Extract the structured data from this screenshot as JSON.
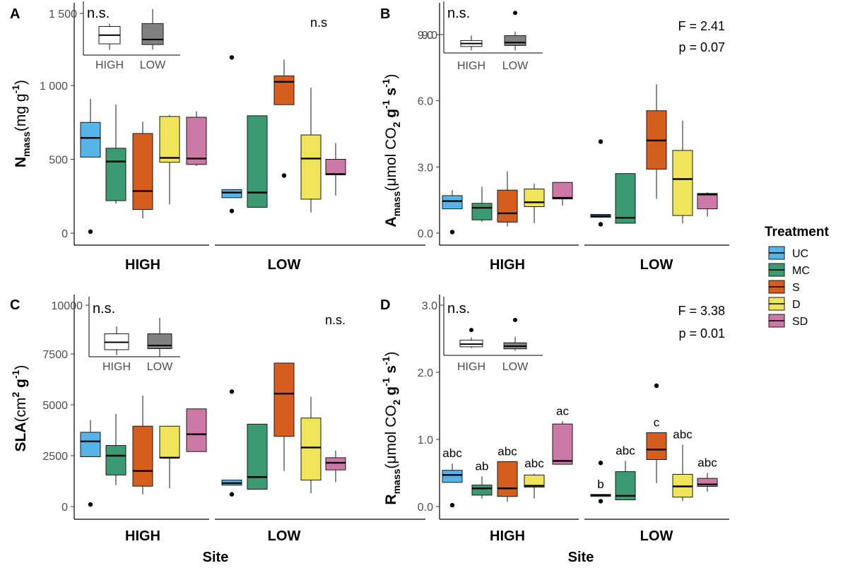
{
  "chart_data": {
    "type": "box",
    "treatments": [
      "UC",
      "MC",
      "S",
      "D",
      "SD"
    ],
    "sites": [
      "HIGH",
      "LOW"
    ],
    "colors": {
      "UC": "#56B4E9",
      "MC": "#3C9A73",
      "S": "#D55E1F",
      "D": "#F0E45A",
      "SD": "#CC79A7",
      "inset_high": "#ffffff",
      "inset_low": "#808080"
    },
    "legend": {
      "title": "Treatment",
      "items": [
        {
          "label": "UC",
          "color": "#56B4E9"
        },
        {
          "label": "MC",
          "color": "#3C9A73"
        },
        {
          "label": "S",
          "color": "#D55E1F"
        },
        {
          "label": "D",
          "color": "#F0E45A"
        },
        {
          "label": "SD",
          "color": "#CC79A7"
        }
      ]
    },
    "xlabel": "Site",
    "panels": [
      {
        "letter": "A",
        "ylabel": {
          "main": "N",
          "sub": "mass",
          "unit": "(mg g",
          "sup": "-1",
          "close": ")"
        },
        "ylim": [
          -60,
          1150
        ],
        "yticks": [
          {
            "v": 0,
            "label": "0"
          },
          {
            "v": 500,
            "label": "500"
          },
          {
            "v": 1000,
            "label": "1 000"
          }
        ],
        "annotations": [
          "n.s"
        ],
        "groups": {
          "HIGH": [
            {
              "t": "UC",
              "min": null,
              "q1": 515,
              "med": 645,
              "q3": 750,
              "max": 910,
              "out": [
                10
              ],
              "sig": null
            },
            {
              "t": "MC",
              "min": 200,
              "q1": 220,
              "med": 485,
              "q3": 575,
              "max": 870,
              "out": [],
              "sig": null
            },
            {
              "t": "S",
              "min": 100,
              "q1": 160,
              "med": 285,
              "q3": 675,
              "max": 755,
              "out": [],
              "sig": null
            },
            {
              "t": "D",
              "min": 195,
              "q1": 480,
              "med": 510,
              "q3": 790,
              "max": 800,
              "out": [],
              "sig": null
            },
            {
              "t": "SD",
              "min": 455,
              "q1": 465,
              "med": 505,
              "q3": 785,
              "max": 825,
              "out": [],
              "sig": null
            }
          ],
          "LOW": [
            {
              "t": "UC",
              "min": null,
              "q1": 240,
              "med": 275,
              "q3": 295,
              "max": null,
              "out": [
                150,
                1190
              ],
              "sig": null
            },
            {
              "t": "MC",
              "min": null,
              "q1": 175,
              "med": 275,
              "q3": 795,
              "max": null,
              "out": [],
              "sig": null
            },
            {
              "t": "S",
              "min": null,
              "q1": 870,
              "med": 1025,
              "q3": 1065,
              "max": 1175,
              "out": [
                390
              ],
              "sig": null
            },
            {
              "t": "D",
              "min": 140,
              "q1": 230,
              "med": 505,
              "q3": 665,
              "max": 985,
              "out": [],
              "sig": null
            },
            {
              "t": "SD",
              "min": 255,
              "q1": 395,
              "med": 400,
              "q3": 500,
              "max": 610,
              "out": [],
              "sig": null
            }
          ]
        },
        "inset": {
          "annotation": "n.s.",
          "yticks": [
            {
              "v": 1500,
              "label": "1 500"
            }
          ],
          "ylim": [
            1230,
            1570
          ],
          "boxes": [
            {
              "site": "HIGH",
              "min": 1250,
              "q1": 1290,
              "med": 1350,
              "q3": 1410,
              "max": 1430
            },
            {
              "site": "LOW",
              "min": 1250,
              "q1": 1285,
              "med": 1320,
              "q3": 1430,
              "max": 1530
            }
          ]
        }
      },
      {
        "letter": "B",
        "ylabel": {
          "main": "A",
          "sub": "mass",
          "unit": "(μmol CO",
          "sub2": "2",
          "unit2": " g",
          "sup": "-1",
          "unit3": " s",
          "sup2": "-1",
          "close": ")"
        },
        "ylim": [
          -0.25,
          10.6
        ],
        "yticks": [
          {
            "v": 0,
            "label": "0.0"
          },
          {
            "v": 3,
            "label": "3.0"
          },
          {
            "v": 6,
            "label": "6.0"
          },
          {
            "v": 9,
            "label": "9.0"
          }
        ],
        "annotations": [
          "F = 2.41",
          "p = 0.07"
        ],
        "groups": {
          "HIGH": [
            {
              "t": "UC",
              "min": null,
              "q1": 1.1,
              "med": 1.45,
              "q3": 1.7,
              "max": 1.95,
              "out": [
                0.05
              ],
              "sig": null
            },
            {
              "t": "MC",
              "min": 0.5,
              "q1": 0.6,
              "med": 1.15,
              "q3": 1.35,
              "max": 2.1,
              "out": [],
              "sig": null
            },
            {
              "t": "S",
              "min": 0.3,
              "q1": 0.5,
              "med": 0.9,
              "q3": 1.95,
              "max": 2.8,
              "out": [],
              "sig": null
            },
            {
              "t": "D",
              "min": 0.45,
              "q1": 1.2,
              "med": 1.4,
              "q3": 2.0,
              "max": 2.25,
              "out": [],
              "sig": null
            },
            {
              "t": "SD",
              "min": 1.25,
              "q1": 1.55,
              "med": 1.6,
              "q3": 2.3,
              "max": 2.3,
              "out": [],
              "sig": null
            }
          ],
          "LOW": [
            {
              "t": "UC",
              "min": null,
              "q1": 0.72,
              "med": 0.78,
              "q3": 0.85,
              "max": null,
              "out": [
                0.4,
                4.15
              ],
              "sig": null
            },
            {
              "t": "MC",
              "min": null,
              "q1": 0.45,
              "med": 0.7,
              "q3": 2.7,
              "max": null,
              "out": [],
              "sig": null
            },
            {
              "t": "S",
              "min": 1.55,
              "q1": 2.9,
              "med": 4.2,
              "q3": 5.55,
              "max": 6.75,
              "out": [],
              "sig": null
            },
            {
              "t": "D",
              "min": 0.45,
              "q1": 0.8,
              "med": 2.45,
              "q3": 3.75,
              "max": 5.1,
              "out": [],
              "sig": null
            },
            {
              "t": "SD",
              "min": 0.75,
              "q1": 1.1,
              "med": 1.75,
              "q3": 1.8,
              "max": 1.85,
              "out": [],
              "sig": null
            }
          ]
        },
        "inset": {
          "annotation": "n.s.",
          "yticks": [
            {
              "v": 9,
              "label": "9.0"
            }
          ],
          "ylim": [
            7.9,
            10.55
          ],
          "boxes": [
            {
              "site": "HIGH",
              "min": 8.2,
              "q1": 8.4,
              "med": 8.55,
              "q3": 8.7,
              "max": 8.95,
              "out": []
            },
            {
              "site": "LOW",
              "min": 8.2,
              "q1": 8.45,
              "med": 8.6,
              "q3": 8.95,
              "max": 9.15,
              "out": [
                10.1
              ]
            }
          ]
        }
      },
      {
        "letter": "C",
        "ylabel": {
          "main": "SLA",
          "unit": "(cm",
          "sup": "2",
          "unit2": " g",
          "sup2": "-1",
          "close": ")"
        },
        "ylim": [
          -450,
          7800
        ],
        "yticks": [
          {
            "v": 0,
            "label": "0"
          },
          {
            "v": 2500,
            "label": "2500"
          },
          {
            "v": 5000,
            "label": "5000"
          },
          {
            "v": 7500,
            "label": "7500"
          }
        ],
        "annotations": [
          "n.s."
        ],
        "groups": {
          "HIGH": [
            {
              "t": "UC",
              "min": null,
              "q1": 2450,
              "med": 3200,
              "q3": 3650,
              "max": 4250,
              "out": [
                100
              ],
              "sig": null
            },
            {
              "t": "MC",
              "min": 1050,
              "q1": 1550,
              "med": 2500,
              "q3": 3000,
              "max": 4550,
              "out": [],
              "sig": null
            },
            {
              "t": "S",
              "min": 600,
              "q1": 1000,
              "med": 1750,
              "q3": 3950,
              "max": 5450,
              "out": [],
              "sig": null
            },
            {
              "t": "D",
              "min": 900,
              "q1": 2400,
              "med": 2400,
              "q3": 3950,
              "max": 3950,
              "out": [],
              "sig": null
            },
            {
              "t": "SD",
              "min": 2700,
              "q1": 2700,
              "med": 3550,
              "q3": 4800,
              "max": 4800,
              "out": [],
              "sig": null
            }
          ],
          "LOW": [
            {
              "t": "UC",
              "min": null,
              "q1": 1050,
              "med": 1150,
              "q3": 1300,
              "max": null,
              "out": [
                600,
                5650
              ],
              "sig": null
            },
            {
              "t": "MC",
              "min": null,
              "q1": 850,
              "med": 1450,
              "q3": 4050,
              "max": null,
              "out": [],
              "sig": null
            },
            {
              "t": "S",
              "min": 1750,
              "q1": 3450,
              "med": 5550,
              "q3": 7050,
              "max": 7050,
              "out": [],
              "sig": null
            },
            {
              "t": "D",
              "min": 650,
              "q1": 1300,
              "med": 2900,
              "q3": 4350,
              "max": 5400,
              "out": [],
              "sig": null
            },
            {
              "t": "SD",
              "min": 1200,
              "q1": 1800,
              "med": 2150,
              "q3": 2400,
              "max": 2750,
              "out": [],
              "sig": null
            }
          ]
        },
        "inset": {
          "annotation": "n.s.",
          "yticks": [
            {
              "v": 10000,
              "label": "10000"
            }
          ],
          "ylim": [
            6900,
            10300
          ],
          "boxes": [
            {
              "site": "HIGH",
              "min": 7650,
              "q1": 7900,
              "med": 8250,
              "q3": 8650,
              "max": 9000,
              "out": []
            },
            {
              "site": "LOW",
              "min": 7550,
              "q1": 7950,
              "med": 8100,
              "q3": 8650,
              "max": 9400,
              "out": []
            }
          ]
        }
      },
      {
        "letter": "D",
        "ylabel": {
          "main": "R",
          "sub": "mass",
          "unit": "(μmol CO",
          "sub2": "2",
          "unit2": " g",
          "sup": "-1",
          "unit3": " s",
          "sup2": "-1",
          "close": ")"
        },
        "ylim": [
          -0.08,
          2.2
        ],
        "yticks": [
          {
            "v": 0,
            "label": "0.0"
          },
          {
            "v": 1,
            "label": "1.0"
          },
          {
            "v": 2,
            "label": "2.0"
          }
        ],
        "annotations": [
          "F = 3.38",
          "p = 0.01"
        ],
        "groups": {
          "HIGH": [
            {
              "t": "UC",
              "min": null,
              "q1": 0.36,
              "med": 0.47,
              "q3": 0.54,
              "max": 0.64,
              "out": [
                0.02
              ],
              "sig": "abc"
            },
            {
              "t": "MC",
              "min": 0.12,
              "q1": 0.17,
              "med": 0.27,
              "q3": 0.32,
              "max": 0.45,
              "out": [],
              "sig": "ab"
            },
            {
              "t": "S",
              "min": 0.07,
              "q1": 0.15,
              "med": 0.27,
              "q3": 0.67,
              "max": 0.67,
              "out": [],
              "sig": "abc"
            },
            {
              "t": "D",
              "min": 0.12,
              "q1": 0.29,
              "med": 0.31,
              "q3": 0.47,
              "max": 0.49,
              "out": [],
              "sig": "abc"
            },
            {
              "t": "SD",
              "min": 0.63,
              "q1": 0.63,
              "med": 0.68,
              "q3": 1.23,
              "max": 1.27,
              "out": [],
              "sig": "ac"
            }
          ],
          "LOW": [
            {
              "t": "UC",
              "min": null,
              "q1": 0.15,
              "med": 0.17,
              "q3": 0.18,
              "max": null,
              "out": [
                0.08,
                0.65
              ],
              "sig": "b"
            },
            {
              "t": "MC",
              "min": null,
              "q1": 0.1,
              "med": 0.16,
              "q3": 0.52,
              "max": 0.68,
              "out": [],
              "sig": "abc"
            },
            {
              "t": "S",
              "min": 0.35,
              "q1": 0.7,
              "med": 0.85,
              "q3": 1.1,
              "max": 1.1,
              "out": [
                1.8
              ],
              "sig": "c"
            },
            {
              "t": "D",
              "min": 0.08,
              "q1": 0.14,
              "med": 0.3,
              "q3": 0.48,
              "max": 0.92,
              "out": [],
              "sig": "abc"
            },
            {
              "t": "SD",
              "min": 0.22,
              "q1": 0.3,
              "med": 0.33,
              "q3": 0.42,
              "max": 0.5,
              "out": [],
              "sig": "abc"
            }
          ]
        },
        "inset": {
          "annotation": "n.s.",
          "yticks": [
            {
              "v": 3,
              "label": "3.0"
            }
          ],
          "ylim": [
            2.15,
            3.1
          ],
          "boxes": [
            {
              "site": "HIGH",
              "min": 2.36,
              "q1": 2.38,
              "med": 2.42,
              "q3": 2.48,
              "max": 2.52,
              "out": [
                2.63
              ]
            },
            {
              "site": "LOW",
              "min": 2.32,
              "q1": 2.35,
              "med": 2.39,
              "q3": 2.44,
              "max": 2.53,
              "out": [
                2.78
              ]
            }
          ]
        }
      }
    ]
  }
}
